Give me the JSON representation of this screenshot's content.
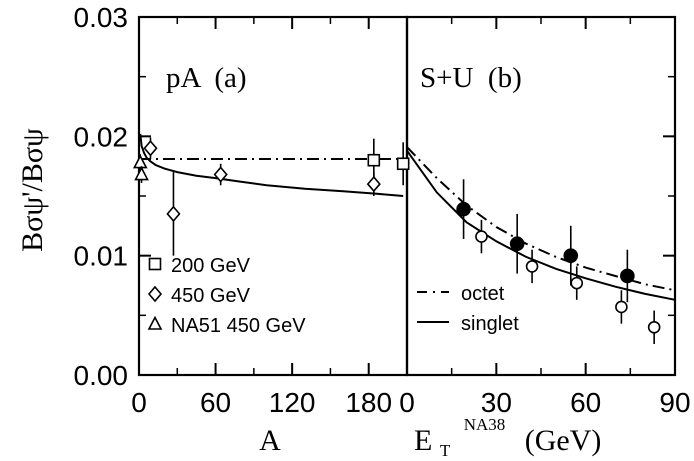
{
  "figure": {
    "ylabel": "Bσψ'/Bσψ",
    "ylim": [
      0,
      0.03
    ],
    "yticks": [
      0,
      0.01,
      0.02,
      0.03
    ],
    "ytick_labels": [
      "0.00",
      "0.01",
      "0.02",
      "0.03"
    ]
  },
  "chart_data": [
    {
      "type": "scatter",
      "panel_label": "pA  (a)",
      "xlabel": "A",
      "xlim": [
        0,
        210
      ],
      "xticks": [
        0,
        60,
        120,
        180
      ],
      "ylim": [
        0,
        0.03
      ],
      "series": [
        {
          "name": "200 GeV",
          "marker": "square",
          "points": [
            {
              "x": 184,
              "y": 0.018,
              "err": 0.0018
            },
            {
              "x": 207,
              "y": 0.0177,
              "err": 0.0018
            }
          ]
        },
        {
          "name": "450 GeV",
          "marker": "diamond",
          "points": [
            {
              "x": 9,
              "y": 0.019,
              "err": 0.0009
            },
            {
              "x": 27,
              "y": 0.0135,
              "err": 0.0035
            },
            {
              "x": 64,
              "y": 0.0168,
              "err": 0.0009
            },
            {
              "x": 184,
              "y": 0.016,
              "err": 0.001
            }
          ]
        },
        {
          "name": "NA51 450 GeV",
          "marker": "triangle",
          "points": [
            {
              "x": 1,
              "y": 0.0178,
              "err": 0.0007
            },
            {
              "x": 2,
              "y": 0.0168,
              "err": 0.0007
            }
          ]
        }
      ],
      "curves": [
        {
          "style": "dash-dot",
          "x": [
            0,
            210
          ],
          "y": [
            0.0181,
            0.0181
          ]
        },
        {
          "style": "solid",
          "x": [
            1,
            2,
            4,
            6,
            9,
            13,
            20,
            30,
            45,
            60,
            80,
            100,
            130,
            160,
            185,
            207
          ],
          "y": [
            0.0202,
            0.0192,
            0.0186,
            0.0182,
            0.0179,
            0.0176,
            0.0173,
            0.017,
            0.0167,
            0.0165,
            0.0162,
            0.0159,
            0.0156,
            0.0154,
            0.0152,
            0.015
          ]
        }
      ],
      "legend": {
        "placement": "bottom-left",
        "entries": [
          {
            "label": "200 GeV",
            "marker": "square"
          },
          {
            "label": "450 GeV",
            "marker": "diamond"
          },
          {
            "label": "NA51 450 GeV",
            "marker": "triangle"
          }
        ]
      }
    },
    {
      "type": "scatter",
      "panel_label": "S+U  (b)",
      "xlabel": "E",
      "xlabel_sub": "T",
      "xlabel_sup": "NA38",
      "xlabel_unit": "(GeV)",
      "xlim": [
        0,
        90
      ],
      "xticks": [
        0,
        30,
        60,
        90
      ],
      "ylim": [
        0,
        0.03
      ],
      "series": [
        {
          "name": "filled",
          "marker": "circle-filled",
          "points": [
            {
              "x": 19,
              "y": 0.0139,
              "err": 0.0025
            },
            {
              "x": 37,
              "y": 0.011,
              "err": 0.0025
            },
            {
              "x": 55,
              "y": 0.01,
              "err": 0.0025
            },
            {
              "x": 74,
              "y": 0.0083,
              "err": 0.0022
            }
          ]
        },
        {
          "name": "open",
          "marker": "circle-open",
          "points": [
            {
              "x": 25,
              "y": 0.0116,
              "err": 0.0014
            },
            {
              "x": 42,
              "y": 0.0091,
              "err": 0.0014
            },
            {
              "x": 57,
              "y": 0.0077,
              "err": 0.0014
            },
            {
              "x": 72,
              "y": 0.0057,
              "err": 0.0014
            },
            {
              "x": 83,
              "y": 0.004,
              "err": 0.0014
            }
          ]
        }
      ],
      "curves": [
        {
          "name": "octet",
          "style": "dash-dot",
          "x": [
            0,
            10,
            20,
            30,
            40,
            50,
            60,
            70,
            80,
            90
          ],
          "y": [
            0.0191,
            0.0165,
            0.0142,
            0.0124,
            0.011,
            0.0099,
            0.009,
            0.0083,
            0.0076,
            0.0071
          ]
        },
        {
          "name": "singlet",
          "style": "solid",
          "x": [
            0,
            10,
            20,
            30,
            40,
            50,
            60,
            70,
            80,
            90
          ],
          "y": [
            0.0188,
            0.0153,
            0.0128,
            0.0112,
            0.0099,
            0.0089,
            0.0081,
            0.0074,
            0.0068,
            0.0063
          ]
        }
      ],
      "legend": {
        "placement": "bottom-left",
        "entries": [
          {
            "label": "octet",
            "style": "dash-dot"
          },
          {
            "label": "singlet",
            "style": "solid"
          }
        ]
      }
    }
  ]
}
